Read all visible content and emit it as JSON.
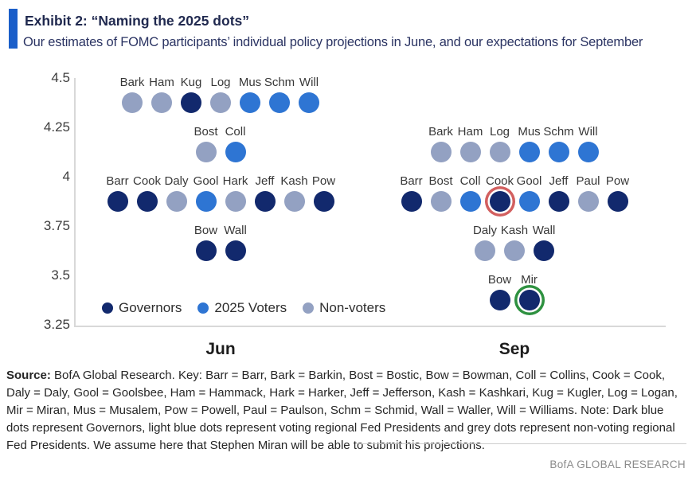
{
  "header": {
    "exhibit_title": "Exhibit 2: “Naming the 2025 dots”",
    "subtitle": "Our estimates of FOMC participants’ individual policy projections in June, and our expectations for September"
  },
  "chart_data": {
    "type": "scatter",
    "title": "Exhibit 2: “Naming the 2025 dots”",
    "y_axis": {
      "min": 3.25,
      "max": 4.5,
      "tick_values": [
        4.5,
        4.25,
        4,
        3.75,
        3.5,
        3.25
      ],
      "tick_labels": [
        "4.5",
        "4.25",
        "4",
        "3.75",
        "3.5",
        "3.25"
      ]
    },
    "x_categories": [
      "Jun",
      "Sep"
    ],
    "legend": [
      {
        "key": "governor",
        "label": "Governors",
        "color": "#12296d"
      },
      {
        "key": "voter",
        "label": "2025 Voters",
        "color": "#2e75d3"
      },
      {
        "key": "nonvoter",
        "label": "Non-voters",
        "color": "#93a1c2"
      }
    ],
    "ring_colors": {
      "red": "#d25f5f",
      "green": "#2e9140"
    },
    "groups": [
      {
        "label": "Jun",
        "rows": [
          {
            "rate": 4.375,
            "dots": [
              {
                "name": "Bark",
                "type": "nonvoter"
              },
              {
                "name": "Ham",
                "type": "nonvoter"
              },
              {
                "name": "Kug",
                "type": "governor"
              },
              {
                "name": "Log",
                "type": "nonvoter"
              },
              {
                "name": "Mus",
                "type": "voter"
              },
              {
                "name": "Schm",
                "type": "voter"
              },
              {
                "name": "Will",
                "type": "voter"
              }
            ]
          },
          {
            "rate": 4.125,
            "dots": [
              {
                "name": "Bost",
                "type": "nonvoter"
              },
              {
                "name": "Coll",
                "type": "voter"
              }
            ]
          },
          {
            "rate": 3.875,
            "dots": [
              {
                "name": "Barr",
                "type": "governor"
              },
              {
                "name": "Cook",
                "type": "governor"
              },
              {
                "name": "Daly",
                "type": "nonvoter"
              },
              {
                "name": "Gool",
                "type": "voter"
              },
              {
                "name": "Hark",
                "type": "nonvoter"
              },
              {
                "name": "Jeff",
                "type": "governor"
              },
              {
                "name": "Kash",
                "type": "nonvoter"
              },
              {
                "name": "Pow",
                "type": "governor"
              }
            ]
          },
          {
            "rate": 3.625,
            "dots": [
              {
                "name": "Bow",
                "type": "governor"
              },
              {
                "name": "Wall",
                "type": "governor"
              }
            ]
          }
        ]
      },
      {
        "label": "Sep",
        "rows": [
          {
            "rate": 4.125,
            "dots": [
              {
                "name": "Bark",
                "type": "nonvoter"
              },
              {
                "name": "Ham",
                "type": "nonvoter"
              },
              {
                "name": "Log",
                "type": "nonvoter"
              },
              {
                "name": "Mus",
                "type": "voter"
              },
              {
                "name": "Schm",
                "type": "voter"
              },
              {
                "name": "Will",
                "type": "voter"
              }
            ]
          },
          {
            "rate": 3.875,
            "dots": [
              {
                "name": "Barr",
                "type": "governor"
              },
              {
                "name": "Bost",
                "type": "nonvoter"
              },
              {
                "name": "Coll",
                "type": "voter"
              },
              {
                "name": "Cook",
                "type": "governor",
                "ring": "red"
              },
              {
                "name": "Gool",
                "type": "voter"
              },
              {
                "name": "Jeff",
                "type": "governor"
              },
              {
                "name": "Paul",
                "type": "nonvoter"
              },
              {
                "name": "Pow",
                "type": "governor"
              }
            ]
          },
          {
            "rate": 3.625,
            "dots": [
              {
                "name": "Daly",
                "type": "nonvoter"
              },
              {
                "name": "Kash",
                "type": "nonvoter"
              },
              {
                "name": "Wall",
                "type": "governor"
              }
            ]
          },
          {
            "rate": 3.375,
            "dots": [
              {
                "name": "Bow",
                "type": "governor"
              },
              {
                "name": "Mir",
                "type": "governor",
                "ring": "green"
              }
            ]
          }
        ]
      }
    ]
  },
  "footer": {
    "source_label": "Source:",
    "source_text": " BofA Global Research. Key: Barr = Barr, Bark = Barkin, Bost = Bostic, Bow = Bowman, Coll = Collins, Cook = Cook, Daly = Daly, Gool = Goolsbee, Ham = Hammack, Hark = Harker, Jeff = Jefferson, Kash = Kashkari, Kug = Kugler, Log = Logan, Mir = Miran, Mus = Musalem, Pow = Powell, Paul = Paulson, Schm = Schmid, Wall = Waller, Will = Williams. Note: Dark blue dots represent Governors, light blue dots represent voting regional Fed Presidents and grey dots represent non-voting regional Fed Presidents. We assume here that Stephen Miran will be able to submit his projections.",
    "brand": "BofA GLOBAL RESEARCH"
  }
}
